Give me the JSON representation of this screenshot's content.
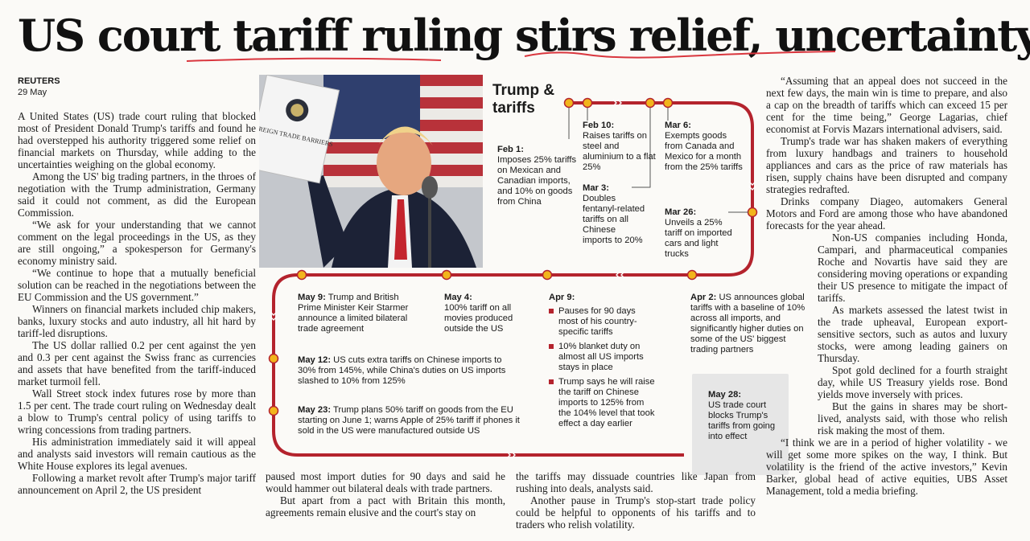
{
  "headline": "US court tariff ruling stirs relief, uncertainty",
  "byline": {
    "source": "REUTERS",
    "date": "29 May"
  },
  "col1": [
    "A United States (US) trade court ruling that blocked most of President Donald Trump's tariffs and found he had overstepped his authority triggered some relief on financial markets on Thursday, while adding to the uncertainties weighing on the global economy.",
    "Among the US' big trading partners, in the throes of negotiation with the Trump administration, Germany said it could not comment, as did the European Commission.",
    "“We ask for your understanding that we cannot comment on the legal proceedings in the US, as they are still ongoing,” a spokesperson for Germany's economy ministry said.",
    "“We continue to hope that a mutually beneficial solution can be reached in the negotiations between the EU Commission and the US government.”",
    "Winners on financial markets included chip makers, banks, luxury stocks and auto industry, all hit hard by tariff-led disruptions.",
    "The US dollar rallied 0.2 per cent against the yen and 0.3 per cent against the Swiss franc as currencies and assets that have benefited from the tariff-induced market turmoil fell.",
    "Wall Street stock index futures rose by more than 1.5 per cent. The trade court ruling on Wednesday dealt a blow to Trump's central policy of using tariffs to wring concessions from trading partners.",
    "His administration immediately said it will appeal and analysts said investors will remain cautious as the White House explores its legal avenues.",
    "Following a market revolt after Trump's major tariff announcement on April 2, the US president"
  ],
  "col2": [
    "paused most import duties for 90 days and said he would hammer out bilateral deals with trade partners.",
    "But apart from a pact with Britain this month, agreements remain elusive and the court's stay on"
  ],
  "col3": [
    "the tariffs may dissuade countries like Japan from rushing into deals, analysts said.",
    "Another pause in Trump's stop-start trade policy could be helpful to opponents of his tariffs and to traders who relish volatility."
  ],
  "col4": [
    "“Assuming that an appeal does not succeed in the next few days, the main win is time to prepare, and also a cap on the breadth of tariffs which can exceed 15 per cent for the time being,” George Lagarias, chief economist at Forvis Mazars international advisers, said.",
    "Trump's trade war has shaken makers of everything from luxury handbags and trainers to household appliances and cars as the price of raw materials has risen, supply chains have been disrupted and company strategies redrafted.",
    "Drinks company Diageo, automakers General Motors and Ford are among those who have abandoned forecasts for the year ahead."
  ],
  "col4_wrap": [
    "Non-US companies including Honda, Campari, and pharmaceutical companies Roche and Novartis have said they are considering moving operations or expanding their US presence to mitigate the impact of tariffs.",
    "As markets assessed the latest twist in the trade upheaval, European export-sensitive sectors, such as autos and luxury stocks, were among leading gainers on Thursday.",
    "Spot gold declined for a fourth straight day, while US Treasury yields rose. Bond yields move inversely with prices.",
    "But the gains in shares may be short-lived, analysts said, with those who relish risk making the most of them."
  ],
  "col4_end": [
    "“I think we are in a period of higher volatility - we will get some more spikes on the way, I think. But volatility is the friend of the active investors,” Kevin Barker, global head of active equities, UBS Asset Management, told a media briefing."
  ],
  "photo": {
    "booklet_title": "FOREIGN TRADE BARRIERS"
  },
  "timeline": {
    "title_line1": "Trump &",
    "title_line2": "tariffs",
    "accent": "#b4232d",
    "dot": "#f2b51c",
    "events": {
      "feb1": {
        "date": "Feb 1:",
        "text": "Imposes 25% tariffs on Mexican and Canadian imports, and 10% on goods from China"
      },
      "feb10": {
        "date": "Feb 10:",
        "text": "Raises tariffs on steel and aluminium to a flat 25%"
      },
      "mar3": {
        "date": "Mar 3:",
        "text": "Doubles fentanyl-related tariffs on all Chinese imports to 20%"
      },
      "mar6": {
        "date": "Mar 6:",
        "text": "Exempts goods from Canada and Mexico for a month from the 25% tariffs"
      },
      "mar26": {
        "date": "Mar 26:",
        "text": "Unveils a 25% tariff on imported cars and light trucks"
      },
      "apr2": {
        "date": "Apr 2:",
        "text": "US announces global tariffs with a baseline of 10% across all imports, and significantly higher duties on some of the US' biggest trading partners"
      },
      "apr9": {
        "date": "Apr 9:",
        "bullets": [
          "Pauses for 90 days most of his country-specific tariffs",
          "10% blanket duty on almost all US imports stays in place",
          "Trump says he will raise the tariff on Chinese imports to 125% from the 104% level that took effect a day earlier"
        ]
      },
      "may4": {
        "date": "May 4:",
        "text": "100% tariff on all movies produced outside the US"
      },
      "may9": {
        "date": "May 9:",
        "text": "Trump and British Prime Minister Keir Starmer announce a limited bilateral trade agreement"
      },
      "may12": {
        "date": "May 12:",
        "text": "US cuts extra tariffs on Chinese imports to 30% from 145%, while China's duties on US imports slashed to 10% from 125%"
      },
      "may23": {
        "date": "May 23:",
        "text": "Trump plans 50% tariff on goods from the EU starting on June 1; warns Apple of 25% tariff if phones it sold in the US were manufactured outside US"
      },
      "may28": {
        "date": "May 28:",
        "text": "US trade court blocks Trump's tariffs from going into effect"
      }
    }
  }
}
